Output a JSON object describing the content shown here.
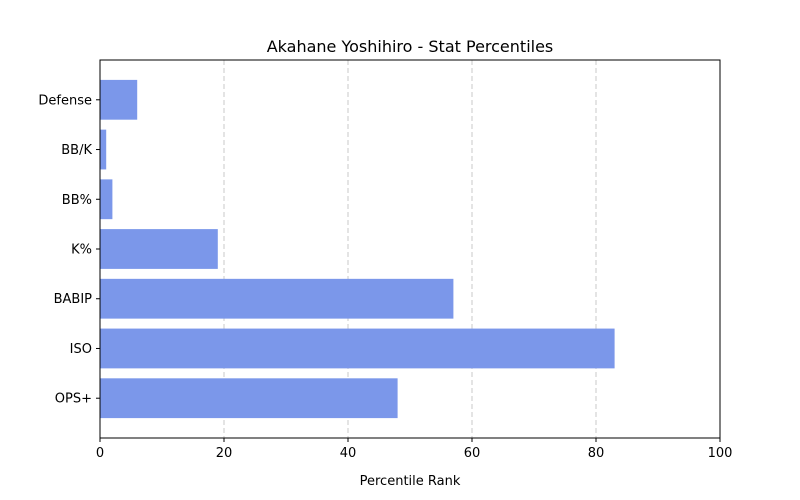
{
  "chart_data": {
    "type": "bar",
    "orientation": "horizontal",
    "title": "Akahane Yoshihiro - Stat Percentiles",
    "xlabel": "Percentile Rank",
    "ylabel": "",
    "xlim": [
      0,
      100
    ],
    "xticks": [
      0,
      20,
      40,
      60,
      80,
      100
    ],
    "grid": "x-dashed",
    "categories": [
      "Defense",
      "BB/K",
      "BB%",
      "K%",
      "BABIP",
      "ISO",
      "OPS+"
    ],
    "values": [
      6,
      1,
      2,
      19,
      57,
      83,
      48
    ],
    "bar_color": "#7b97ea"
  }
}
